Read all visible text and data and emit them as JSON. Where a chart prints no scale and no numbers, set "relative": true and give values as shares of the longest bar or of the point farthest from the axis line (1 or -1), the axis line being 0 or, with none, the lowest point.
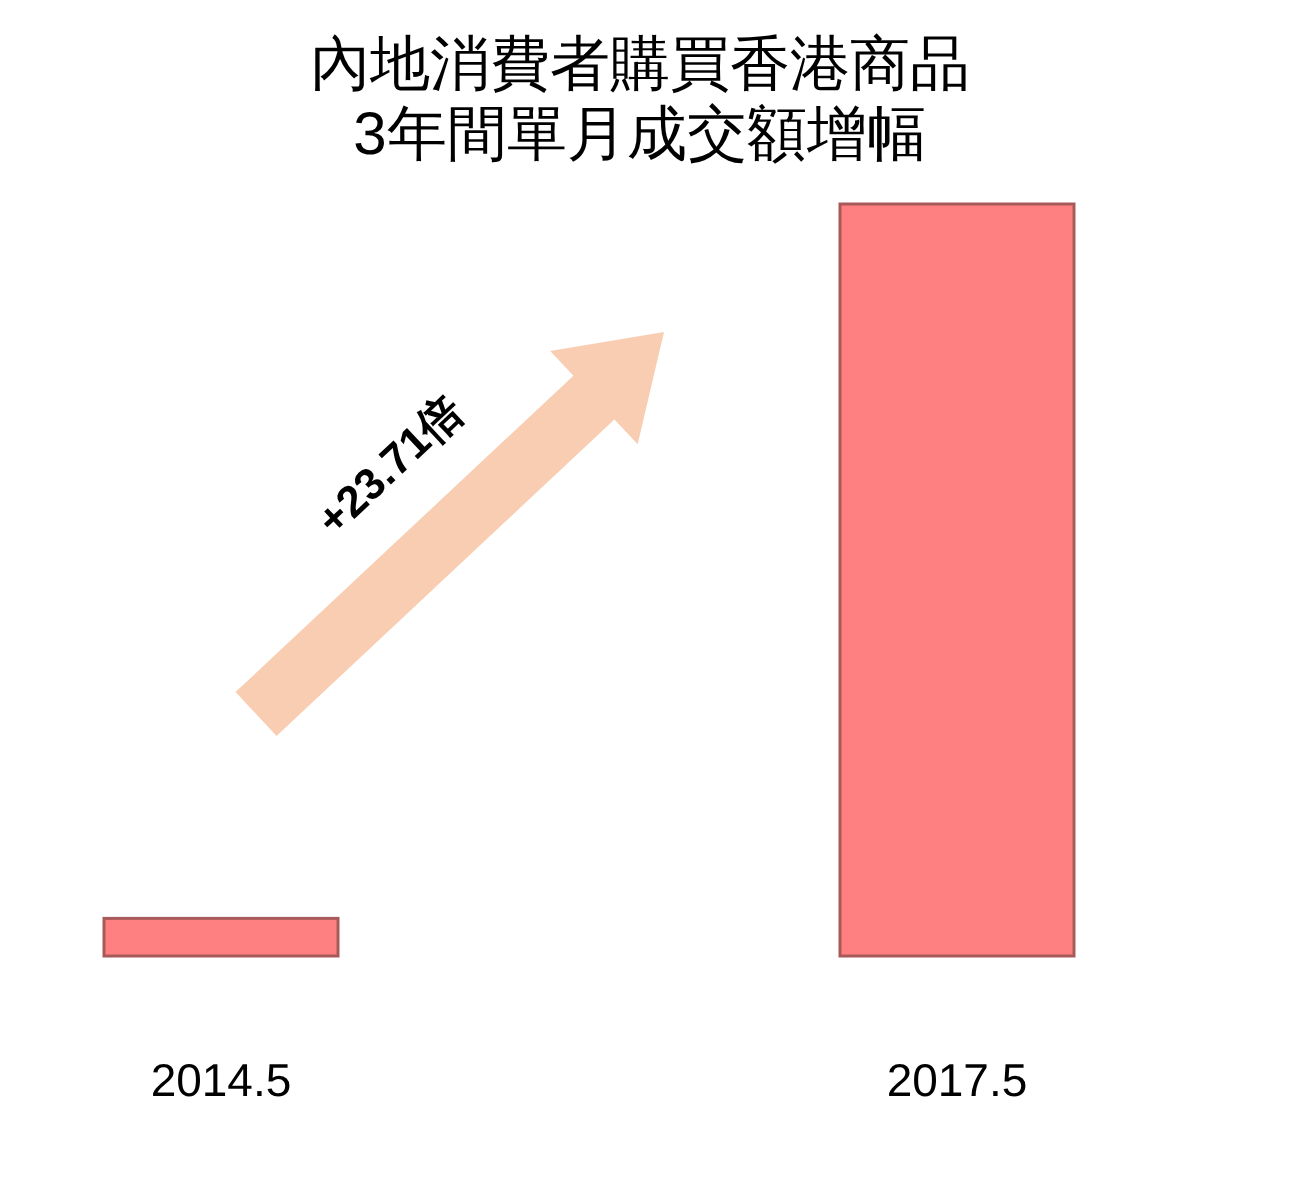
{
  "chart_data": {
    "type": "bar",
    "title": "內地消費者購買香港商品\n3年間單月成交額增幅",
    "categories": [
      "2014.5",
      "2017.5"
    ],
    "values": [
      0.05,
      1
    ],
    "color": "#ff8080",
    "relative": true,
    "annotations": [
      "+23.71倍"
    ]
  }
}
